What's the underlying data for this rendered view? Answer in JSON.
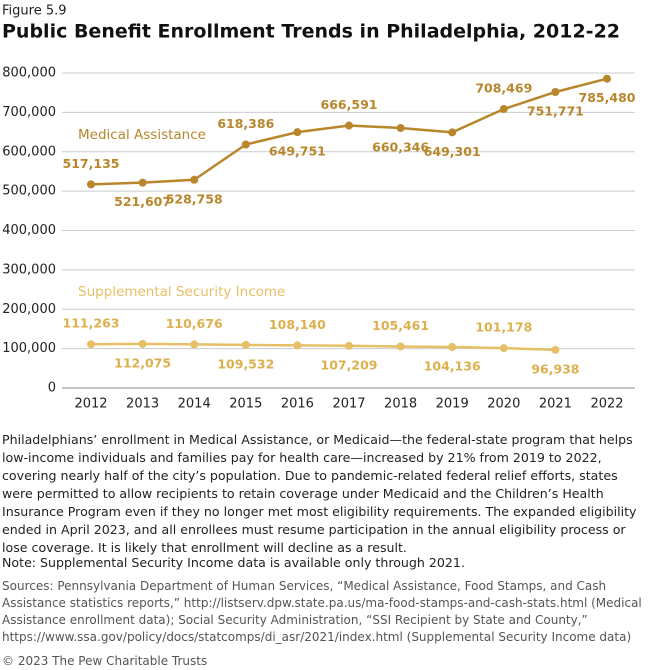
{
  "chart_data": {
    "type": "line",
    "figure_label": "Figure 5.9",
    "title": "Public Benefit Enrollment Trends in Philadelphia, 2012-22",
    "categories": [
      "2012",
      "2013",
      "2014",
      "2015",
      "2016",
      "2017",
      "2018",
      "2019",
      "2020",
      "2021",
      "2022"
    ],
    "series": [
      {
        "name": "Medical Assistance",
        "color": "#b8862b",
        "values": [
          517135,
          521607,
          528758,
          618386,
          649751,
          666591,
          660346,
          649301,
          708469,
          751771,
          785480
        ],
        "value_labels": [
          "517,135",
          "521,607",
          "528,758",
          "618,386",
          "649,751",
          "666,591",
          "660,346",
          "649,301",
          "708,469",
          "751,771",
          "785,480"
        ]
      },
      {
        "name": "Supplemental Security Income",
        "color": "#e6bf66",
        "values": [
          111263,
          112075,
          110676,
          109532,
          108140,
          107209,
          105461,
          104136,
          101178,
          96938,
          null
        ],
        "value_labels": [
          "111,263",
          "112,075",
          "110,676",
          "109,532",
          "108,140",
          "107,209",
          "105,461",
          "104,136",
          "101,178",
          "96,938",
          null
        ]
      }
    ],
    "ylim": [
      0,
      800000
    ],
    "yticks": [
      0,
      {
        "value": 100000,
        "label": "100,000"
      },
      {
        "value": 200000,
        "label": "200,000"
      },
      {
        "value": 300000,
        "label": "300,000"
      },
      {
        "value": 400000,
        "label": "400,000"
      },
      {
        "value": 500000,
        "label": "500,000"
      },
      {
        "value": 600000,
        "label": "600,000"
      },
      {
        "value": 700000,
        "label": "700,000"
      },
      {
        "value": 800000,
        "label": "800,000"
      }
    ],
    "grid": true
  },
  "text": {
    "description": "Philadelphians’ enrollment in Medical Assistance, or Medicaid—the federal-state program that helps low-income individuals and families pay for health care—increased by 21% from 2019 to 2022, covering nearly half of the city’s population. Due to pandemic-related federal relief efforts, states were permitted to allow recipients to retain coverage under Medicaid and the Children’s Health Insurance Program even if they no longer met most eligibility requirements. The expanded eligibility ended in April 2023, and all enrollees must resume participation in the annual eligibility process or lose coverage. It is likely that enrollment will decline as a result.",
    "note": "Note: Supplemental Security Income data is available only through 2021.",
    "sources": "Sources: Pennsylvania Department of Human Services, “Medical Assistance, Food Stamps, and Cash Assistance statistics reports,” http://listserv.dpw.state.pa.us/ma-food-stamps-and-cash-stats.html (Medical Assistance enrollment data); Social Security Administration, “SSI Recipient by State and County,” https://www.ssa.gov/policy/docs/statcomps/di_asr/2021/index.html (Supplemental Security Income data)",
    "copyright": "© 2023 The Pew Charitable Trusts"
  }
}
